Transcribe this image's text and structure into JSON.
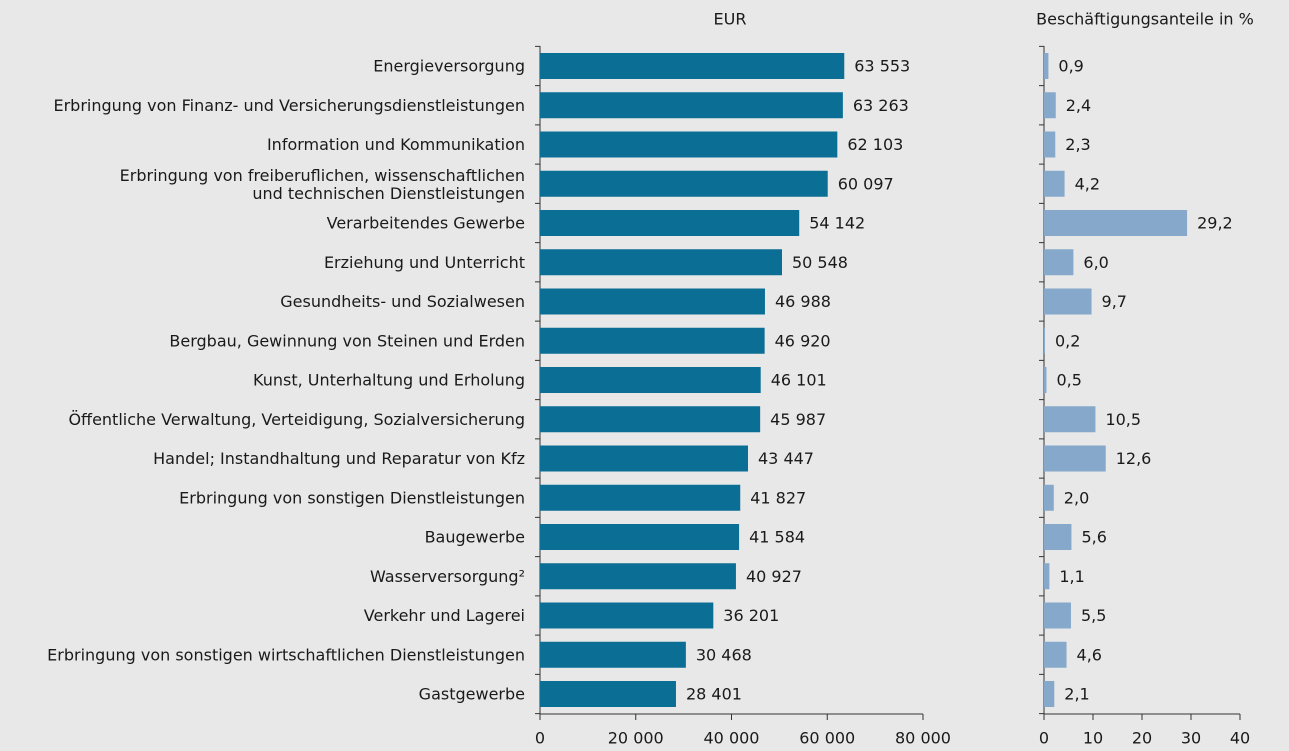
{
  "chart_data": [
    {
      "type": "bar",
      "orientation": "horizontal",
      "title": "EUR",
      "color": "#0b6e94",
      "categories": [
        "Energieversorgung",
        "Erbringung von Finanz- und Versicherungsdienstleistungen",
        "Information und Kommunikation",
        "Erbringung von freiberuflichen, wissenschaftlichen\nund technischen Dienstleistungen",
        "Verarbeitendes Gewerbe",
        "Erziehung und Unterricht",
        "Gesundheits- und Sozialwesen",
        "Bergbau, Gewinnung von Steinen und Erden",
        "Kunst, Unterhaltung und Erholung",
        "Öffentliche Verwaltung, Verteidigung, Sozialversicherung",
        "Handel; Instandhaltung und Reparatur von Kfz",
        "Erbringung von sonstigen Dienstleistungen",
        "Baugewerbe",
        "Wasserversorgung²",
        "Verkehr und Lagerei",
        "Erbringung von sonstigen wirtschaftlichen Dienstleistungen",
        "Gastgewerbe"
      ],
      "values": [
        63553,
        63263,
        62103,
        60097,
        54142,
        50548,
        46988,
        46920,
        46101,
        45987,
        43447,
        41827,
        41584,
        40927,
        36201,
        30468,
        28401
      ],
      "value_labels": [
        "63 553",
        "63 263",
        "62 103",
        "60 097",
        "54 142",
        "50 548",
        "46 988",
        "46 920",
        "46 101",
        "45 987",
        "43 447",
        "41 827",
        "41 584",
        "40 927",
        "36 201",
        "30 468",
        "28 401"
      ],
      "xlim": [
        0,
        80000
      ],
      "xticks": [
        0,
        {
          "value": 20000,
          "label": "20 000"
        },
        {
          "value": 40000,
          "label": "40 000"
        },
        {
          "value": 60000,
          "label": "60 000"
        },
        {
          "value": 80000,
          "label": "80 000"
        }
      ]
    },
    {
      "type": "bar",
      "orientation": "horizontal",
      "title": "Beschäftigungsanteile in %",
      "color": "#86a9cb",
      "values": [
        0.9,
        2.4,
        2.3,
        4.2,
        29.2,
        6.0,
        9.7,
        0.2,
        0.5,
        10.5,
        12.6,
        2.0,
        5.6,
        1.1,
        5.5,
        4.6,
        2.1
      ],
      "value_labels": [
        "0,9",
        "2,4",
        "2,3",
        "4,2",
        "29,2",
        "6,0",
        "9,7",
        "0,2",
        "0,5",
        "10,5",
        "12,6",
        "2,0",
        "5,6",
        "1,1",
        "5,5",
        "4,6",
        "2,1"
      ],
      "xlim": [
        0,
        40
      ],
      "xticks": [
        0,
        10,
        20,
        30,
        40
      ]
    }
  ]
}
